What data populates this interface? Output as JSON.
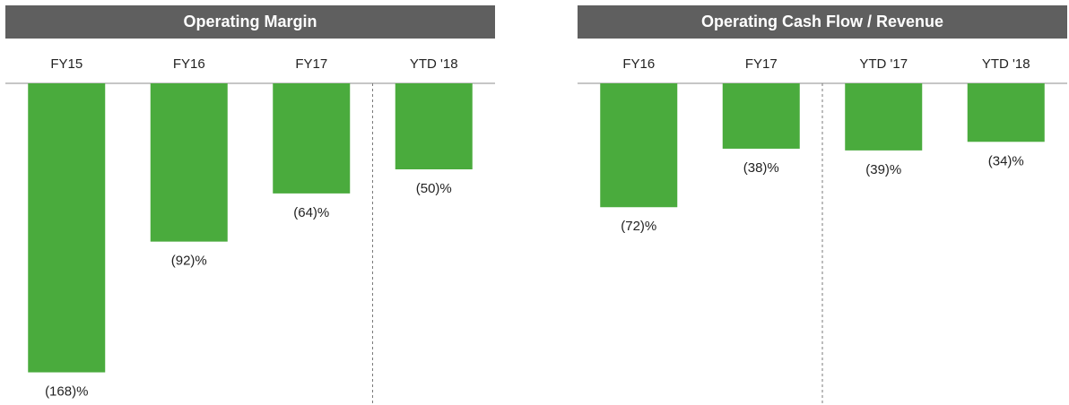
{
  "chart_data": [
    {
      "type": "bar",
      "title": "Operating Margin",
      "categories": [
        "FY15",
        "FY16",
        "FY17",
        "YTD '18"
      ],
      "values": [
        -168,
        -92,
        -64,
        -50
      ],
      "value_labels": [
        "(168)%",
        "(92)%",
        "(64)%",
        "(50)%"
      ],
      "ylim": [
        -180,
        0
      ],
      "divider_before_category": 3,
      "bar_color": "#4aab3d",
      "header_color": "#5f5f5f"
    },
    {
      "type": "bar",
      "title": "Operating Cash Flow / Revenue",
      "categories": [
        "FY16",
        "FY17",
        "YTD '17",
        "YTD '18"
      ],
      "values": [
        -72,
        -38,
        -39,
        -34
      ],
      "value_labels": [
        "(72)%",
        "(38)%",
        "(39)%",
        "(34)%"
      ],
      "ylim": [
        -180,
        0
      ],
      "divider_before_category": 2,
      "bar_color": "#4aab3d",
      "header_color": "#5f5f5f"
    }
  ]
}
